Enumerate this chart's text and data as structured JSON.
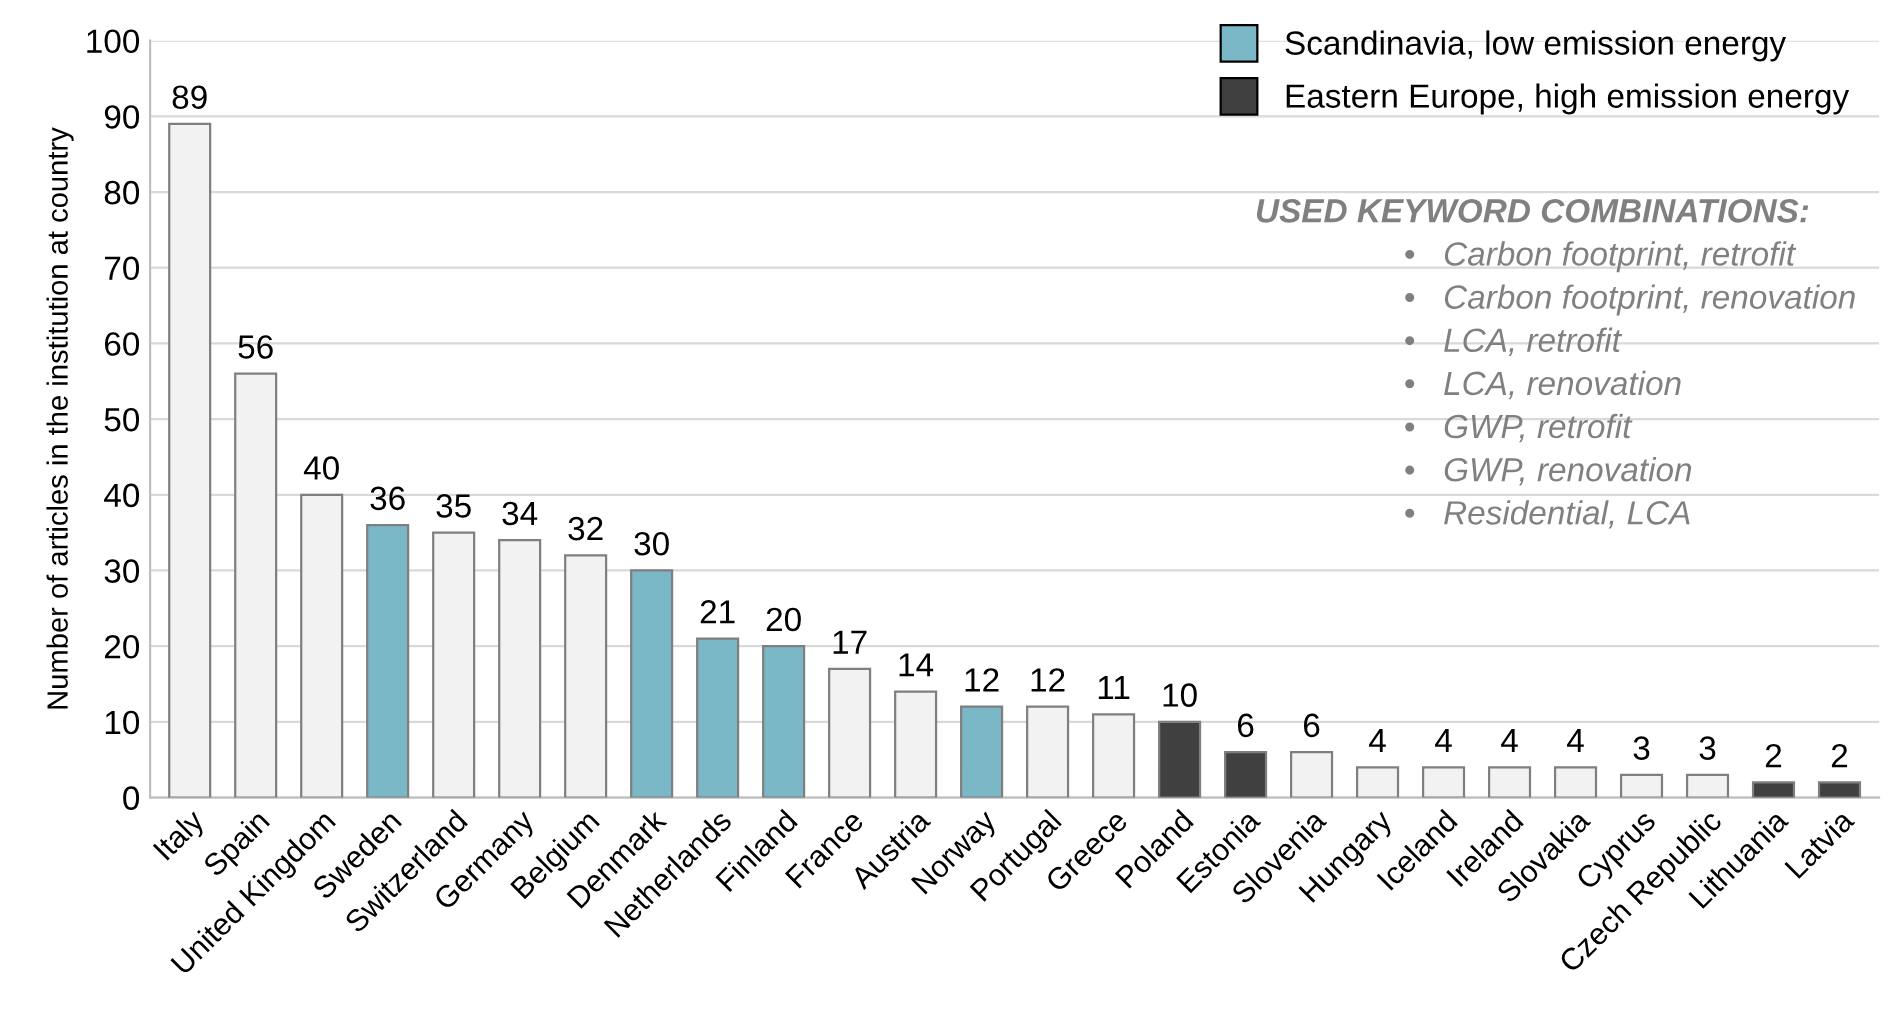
{
  "chart_data": {
    "type": "bar",
    "ylabel": "Number of articles in the institution at country",
    "categories": [
      "Italy",
      "Spain",
      "United Kingdom",
      "Sweden",
      "Switzerland",
      "Germany",
      "Belgium",
      "Denmark",
      "Netherlands",
      "Finland",
      "France",
      "Austria",
      "Norway",
      "Portugal",
      "Greece",
      "Poland",
      "Estonia",
      "Slovenia",
      "Hungary",
      "Iceland",
      "Ireland",
      "Slovakia",
      "Cyprus",
      "Czech Republic",
      "Lithuania",
      "Latvia"
    ],
    "series": [
      {
        "color": "#f2f2f2",
        "values": [
          89,
          56,
          40,
          null,
          35,
          34,
          32,
          null,
          null,
          null,
          17,
          14,
          null,
          12,
          11,
          null,
          null,
          6,
          4,
          4,
          4,
          4,
          3,
          3,
          null,
          null
        ]
      },
      {
        "name": "Scandinavia, low emission energy",
        "color": "#7ab8c8",
        "values": [
          null,
          null,
          null,
          36,
          null,
          null,
          null,
          30,
          21,
          20,
          null,
          null,
          12,
          null,
          null,
          null,
          null,
          null,
          null,
          null,
          null,
          null,
          null,
          null,
          null,
          null
        ]
      },
      {
        "name": "Eastern Europe, high emission energy",
        "color": "#404040",
        "values": [
          null,
          null,
          null,
          null,
          null,
          null,
          null,
          null,
          null,
          null,
          null,
          null,
          null,
          null,
          null,
          10,
          6,
          null,
          null,
          null,
          null,
          null,
          null,
          null,
          2,
          2
        ]
      }
    ],
    "ylim": [
      0,
      100
    ],
    "yticks": [
      0,
      10,
      20,
      30,
      40,
      50,
      60,
      70,
      80,
      90,
      100
    ],
    "grid": "y",
    "legend": "top right",
    "data_labels": true,
    "annotations": [
      "USED KEYWORD COMBINATIONS:",
      "•   Carbon footprint, retrofit",
      "•   Carbon footprint, renovation",
      "•   LCA, retrofit",
      "•   LCA, renovation",
      "•   GWP, retrofit",
      "•   GWP, renovation",
      "•   Residential, LCA"
    ]
  }
}
